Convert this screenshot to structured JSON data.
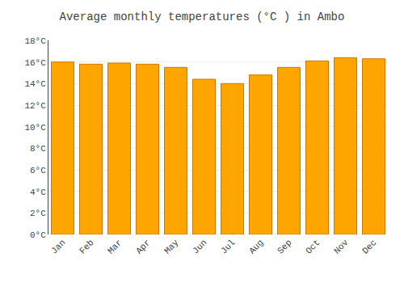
{
  "chart_data": {
    "type": "bar",
    "title": "Average monthly temperatures (°C ) in Ambo",
    "categories": [
      "Jan",
      "Feb",
      "Mar",
      "Apr",
      "May",
      "Jun",
      "Jul",
      "Aug",
      "Sep",
      "Oct",
      "Nov",
      "Dec"
    ],
    "values": [
      16.0,
      15.8,
      15.9,
      15.8,
      15.5,
      14.4,
      14.0,
      14.8,
      15.5,
      16.1,
      16.4,
      16.3
    ],
    "color": "#FFA500",
    "ylim": [
      0,
      18
    ],
    "yticks": [
      {
        "value": 0,
        "label": "0°C"
      },
      {
        "value": 2,
        "label": "2°C"
      },
      {
        "value": 4,
        "label": "4°C"
      },
      {
        "value": 6,
        "label": "6°C"
      },
      {
        "value": 8,
        "label": "8°C"
      },
      {
        "value": 10,
        "label": "10°C"
      },
      {
        "value": 12,
        "label": "12°C"
      },
      {
        "value": 14,
        "label": "14°C"
      },
      {
        "value": 16,
        "label": "16°C"
      },
      {
        "value": 18,
        "label": "18°C"
      }
    ],
    "grid": true
  }
}
